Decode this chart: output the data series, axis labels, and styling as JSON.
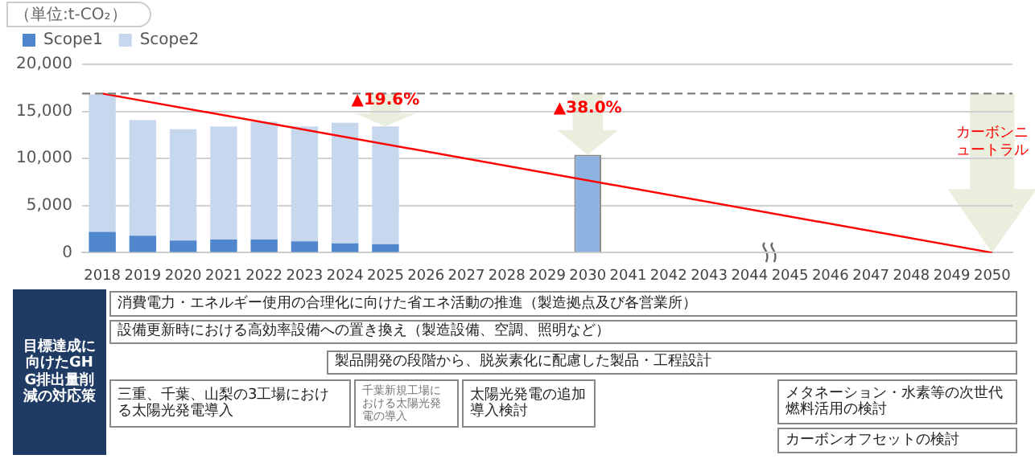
{
  "chart_data": {
    "type": "bar",
    "stacked": true,
    "ylabel": "（単位:t-CO₂）",
    "categories": [
      "2018",
      "2019",
      "2020",
      "2021",
      "2022",
      "2023",
      "2024",
      "2025",
      "2026",
      "2027",
      "2028",
      "2029",
      "2030",
      "2041",
      "2042",
      "2043",
      "2044",
      "2045",
      "2046",
      "2047",
      "2048",
      "2049",
      "2050"
    ],
    "series": [
      {
        "name": "Scope1",
        "color": "#4f86cc",
        "values": [
          2200,
          1800,
          1300,
          1400,
          1400,
          1200,
          1000,
          900,
          null,
          null,
          null,
          null,
          null,
          null,
          null,
          null,
          null,
          null,
          null,
          null,
          null,
          null,
          null
        ]
      },
      {
        "name": "Scope2",
        "color": "#c7d8ee",
        "values": [
          14600,
          12300,
          11800,
          12000,
          12500,
          12200,
          12800,
          12500,
          null,
          null,
          null,
          null,
          null,
          null,
          null,
          null,
          null,
          null,
          null,
          null,
          null,
          null,
          null
        ]
      },
      {
        "color": "#8db3e2",
        "values": [
          null,
          null,
          null,
          null,
          null,
          null,
          null,
          null,
          null,
          null,
          null,
          null,
          10400,
          null,
          null,
          null,
          null,
          null,
          null,
          null,
          null,
          null,
          null
        ]
      },
      {
        "type": "line",
        "color": "#ff0000",
        "values": [
          16900,
          null,
          null,
          null,
          null,
          null,
          null,
          null,
          null,
          null,
          null,
          null,
          null,
          null,
          null,
          null,
          null,
          null,
          null,
          null,
          null,
          null,
          0
        ]
      }
    ],
    "ylim": [
      0,
      20000
    ],
    "yticks": [
      0,
      {
        "value": 5000,
        "label": "5,000"
      },
      {
        "value": 10000,
        "label": "10,000"
      },
      {
        "value": 15000,
        "label": "15,000"
      },
      {
        "value": 20000,
        "label": "20,000"
      }
    ],
    "grid": "y",
    "legend": "top left",
    "marker": "none",
    "ref_lines": [
      {
        "axis": "y",
        "value": 16900,
        "color": "#808080",
        "line_style": "dashed"
      }
    ],
    "annotations": [
      {
        "text": "▲19.6%",
        "x": "2025",
        "y": 13400
      },
      {
        "text": "▲38.0%",
        "x": "2030",
        "y": 10400
      },
      "カーボンニュートラル",
      "目標達成に向けたGHG排出量削減の対応策",
      "消費電力・エネルギー使用の合理化に向けた省エネ活動の推進（製造拠点及び各営業所）",
      "設備更新時における高効率設備への置き換え（製造設備、空調、照明など）",
      "製品開発の段階から、脱炭素化に配慮した製品・工程設計",
      "三重、千葉、山梨の3工場における太陽光発電導入",
      "千葉新規工場における太陽光発電の導入",
      "太陽光発電の追加導入検討",
      "メタネーション・水素等の次世代燃料活用の検討",
      "カーボンオフセットの検討"
    ]
  }
}
